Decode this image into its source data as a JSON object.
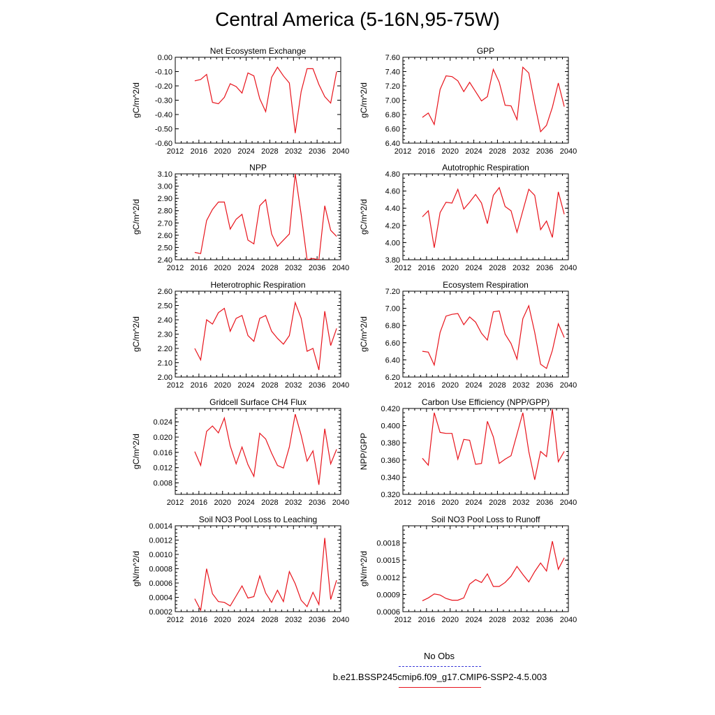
{
  "title": "Central America (5-16N,95-75W)",
  "colors": {
    "model": "#e8141c",
    "obs": "#3a3ad8",
    "axis": "#000000"
  },
  "legend": {
    "obs_label": "No Obs",
    "model_label": "b.e21.BSSP245cmip6.f09_g17.CMIP6-SSP2-4.5.003"
  },
  "chart_data": [
    {
      "type": "line",
      "title": "Net Ecosystem Exchange",
      "xlabel": "",
      "ylabel": "gC/m^2/d",
      "xlim": [
        2012,
        2040
      ],
      "ylim": [
        -0.6,
        0.0
      ],
      "xticks": [
        2012,
        2016,
        2020,
        2024,
        2028,
        2032,
        2036,
        2040
      ],
      "yticks": [
        "0.00",
        "-0.10",
        "-0.20",
        "-0.30",
        "-0.40",
        "-0.50",
        "-0.60"
      ],
      "x": [
        2015.3,
        2016.3,
        2017.3,
        2018.3,
        2019.3,
        2020.3,
        2021.3,
        2022.3,
        2023.3,
        2024.3,
        2025.3,
        2026.3,
        2027.3,
        2028.3,
        2029.3,
        2030.3,
        2031.3,
        2032.3,
        2033.3,
        2034.3,
        2035.3,
        2036.3,
        2037.3,
        2038.3,
        2039.3
      ],
      "series": [
        {
          "name": "b.e21.BSSP245cmip6.f09_g17.CMIP6-SSP2-4.5.003",
          "values": [
            -0.165,
            -0.155,
            -0.12,
            -0.315,
            -0.325,
            -0.28,
            -0.185,
            -0.205,
            -0.25,
            -0.11,
            -0.13,
            -0.29,
            -0.38,
            -0.14,
            -0.07,
            -0.13,
            -0.18,
            -0.53,
            -0.24,
            -0.08,
            -0.08,
            -0.19,
            -0.275,
            -0.32,
            -0.1
          ]
        }
      ]
    },
    {
      "type": "line",
      "title": "GPP",
      "xlabel": "",
      "ylabel": "gC/m^2/d",
      "xlim": [
        2012,
        2040
      ],
      "ylim": [
        6.4,
        7.6
      ],
      "xticks": [
        2012,
        2016,
        2020,
        2024,
        2028,
        2032,
        2036,
        2040
      ],
      "yticks": [
        "6.40",
        "6.60",
        "6.80",
        "7.00",
        "7.20",
        "7.40",
        "7.60"
      ],
      "x": [
        2015.3,
        2016.3,
        2017.3,
        2018.3,
        2019.3,
        2020.3,
        2021.3,
        2022.3,
        2023.3,
        2024.3,
        2025.3,
        2026.3,
        2027.3,
        2028.3,
        2029.3,
        2030.3,
        2031.3,
        2032.3,
        2033.3,
        2034.3,
        2035.3,
        2036.3,
        2037.3,
        2038.3,
        2039.3
      ],
      "series": [
        {
          "name": "b.e21.BSSP245cmip6.f09_g17.CMIP6-SSP2-4.5.003",
          "values": [
            6.76,
            6.82,
            6.66,
            7.15,
            7.34,
            7.33,
            7.27,
            7.12,
            7.25,
            7.12,
            6.99,
            7.05,
            7.43,
            7.25,
            6.93,
            6.92,
            6.73,
            7.46,
            7.38,
            6.95,
            6.56,
            6.65,
            6.9,
            7.24,
            6.91
          ]
        }
      ]
    },
    {
      "type": "line",
      "title": "NPP",
      "xlabel": "",
      "ylabel": "gC/m^2/d",
      "xlim": [
        2012,
        2040
      ],
      "ylim": [
        2.4,
        3.1
      ],
      "xticks": [
        2012,
        2016,
        2020,
        2024,
        2028,
        2032,
        2036,
        2040
      ],
      "yticks": [
        "2.40",
        "2.50",
        "2.60",
        "2.70",
        "2.80",
        "2.90",
        "3.00",
        "3.10"
      ],
      "x": [
        2015.3,
        2016.3,
        2017.3,
        2018.3,
        2019.3,
        2020.3,
        2021.3,
        2022.3,
        2023.3,
        2024.3,
        2025.3,
        2026.3,
        2027.3,
        2028.3,
        2029.3,
        2030.3,
        2031.3,
        2032.3,
        2033.3,
        2034.3,
        2035.3,
        2036.3,
        2037.3,
        2038.3,
        2039.3
      ],
      "series": [
        {
          "name": "b.e21.BSSP245cmip6.f09_g17.CMIP6-SSP2-4.5.003",
          "values": [
            2.46,
            2.45,
            2.72,
            2.81,
            2.87,
            2.87,
            2.65,
            2.73,
            2.77,
            2.56,
            2.53,
            2.84,
            2.89,
            2.61,
            2.51,
            2.56,
            2.61,
            3.1,
            2.77,
            2.4,
            2.41,
            2.4,
            2.84,
            2.64,
            2.59
          ]
        }
      ]
    },
    {
      "type": "line",
      "title": "Autotrophic Respiration",
      "xlabel": "",
      "ylabel": "gC/m^2/d",
      "xlim": [
        2012,
        2040
      ],
      "ylim": [
        3.8,
        4.8
      ],
      "xticks": [
        2012,
        2016,
        2020,
        2024,
        2028,
        2032,
        2036,
        2040
      ],
      "yticks": [
        "3.80",
        "4.00",
        "4.20",
        "4.40",
        "4.60",
        "4.80"
      ],
      "x": [
        2015.3,
        2016.3,
        2017.3,
        2018.3,
        2019.3,
        2020.3,
        2021.3,
        2022.3,
        2023.3,
        2024.3,
        2025.3,
        2026.3,
        2027.3,
        2028.3,
        2029.3,
        2030.3,
        2031.3,
        2032.3,
        2033.3,
        2034.3,
        2035.3,
        2036.3,
        2037.3,
        2038.3,
        2039.3
      ],
      "series": [
        {
          "name": "b.e21.BSSP245cmip6.f09_g17.CMIP6-SSP2-4.5.003",
          "values": [
            4.3,
            4.37,
            3.94,
            4.35,
            4.47,
            4.46,
            4.62,
            4.39,
            4.47,
            4.56,
            4.46,
            4.22,
            4.55,
            4.64,
            4.42,
            4.37,
            4.12,
            4.37,
            4.62,
            4.55,
            4.15,
            4.25,
            4.06,
            4.59,
            4.33
          ]
        }
      ]
    },
    {
      "type": "line",
      "title": "Heterotrophic Respiration",
      "xlabel": "",
      "ylabel": "gC/m^2/d",
      "xlim": [
        2012,
        2040
      ],
      "ylim": [
        2.0,
        2.6
      ],
      "xticks": [
        2012,
        2016,
        2020,
        2024,
        2028,
        2032,
        2036,
        2040
      ],
      "yticks": [
        "2.00",
        "2.10",
        "2.20",
        "2.30",
        "2.40",
        "2.50",
        "2.60"
      ],
      "x": [
        2015.3,
        2016.3,
        2017.3,
        2018.3,
        2019.3,
        2020.3,
        2021.3,
        2022.3,
        2023.3,
        2024.3,
        2025.3,
        2026.3,
        2027.3,
        2028.3,
        2029.3,
        2030.3,
        2031.3,
        2032.3,
        2033.3,
        2034.3,
        2035.3,
        2036.3,
        2037.3,
        2038.3,
        2039.3
      ],
      "series": [
        {
          "name": "b.e21.BSSP245cmip6.f09_g17.CMIP6-SSP2-4.5.003",
          "values": [
            2.2,
            2.12,
            2.4,
            2.37,
            2.45,
            2.48,
            2.32,
            2.41,
            2.43,
            2.29,
            2.25,
            2.41,
            2.43,
            2.32,
            2.27,
            2.23,
            2.29,
            2.52,
            2.41,
            2.18,
            2.2,
            2.05,
            2.46,
            2.22,
            2.34
          ]
        }
      ]
    },
    {
      "type": "line",
      "title": "Ecosystem Respiration",
      "xlabel": "",
      "ylabel": "gC/m^2/d",
      "xlim": [
        2012,
        2040
      ],
      "ylim": [
        6.2,
        7.2
      ],
      "xticks": [
        2012,
        2016,
        2020,
        2024,
        2028,
        2032,
        2036,
        2040
      ],
      "yticks": [
        "6.20",
        "6.40",
        "6.60",
        "6.80",
        "7.00",
        "7.20"
      ],
      "x": [
        2015.3,
        2016.3,
        2017.3,
        2018.3,
        2019.3,
        2020.3,
        2021.3,
        2022.3,
        2023.3,
        2024.3,
        2025.3,
        2026.3,
        2027.3,
        2028.3,
        2029.3,
        2030.3,
        2031.3,
        2032.3,
        2033.3,
        2034.3,
        2035.3,
        2036.3,
        2037.3,
        2038.3,
        2039.3
      ],
      "series": [
        {
          "name": "b.e21.BSSP245cmip6.f09_g17.CMIP6-SSP2-4.5.003",
          "values": [
            6.5,
            6.49,
            6.34,
            6.72,
            6.91,
            6.93,
            6.94,
            6.81,
            6.9,
            6.84,
            6.71,
            6.63,
            6.96,
            6.97,
            6.7,
            6.59,
            6.41,
            6.88,
            7.03,
            6.72,
            6.35,
            6.3,
            6.51,
            6.82,
            6.66
          ]
        }
      ]
    },
    {
      "type": "line",
      "title": "Gridcell Surface CH4 Flux",
      "xlabel": "",
      "ylabel": "gC/m^2/d",
      "xlim": [
        2012,
        2040
      ],
      "ylim": [
        0.005,
        0.0275
      ],
      "xticks": [
        2012,
        2016,
        2020,
        2024,
        2028,
        2032,
        2036,
        2040
      ],
      "yticks": [
        "0.008",
        "0.012",
        "0.016",
        "0.020",
        "0.024"
      ],
      "x": [
        2015.3,
        2016.3,
        2017.3,
        2018.3,
        2019.3,
        2020.3,
        2021.3,
        2022.3,
        2023.3,
        2024.3,
        2025.3,
        2026.3,
        2027.3,
        2028.3,
        2029.3,
        2030.3,
        2031.3,
        2032.3,
        2033.3,
        2034.3,
        2035.3,
        2036.3,
        2037.3,
        2038.3,
        2039.3
      ],
      "series": [
        {
          "name": "b.e21.BSSP245cmip6.f09_g17.CMIP6-SSP2-4.5.003",
          "values": [
            0.0162,
            0.0126,
            0.0215,
            0.0229,
            0.0211,
            0.025,
            0.0177,
            0.013,
            0.0174,
            0.0128,
            0.0097,
            0.021,
            0.0195,
            0.0158,
            0.0126,
            0.0119,
            0.0174,
            0.026,
            0.0205,
            0.0137,
            0.0164,
            0.0075,
            0.0222,
            0.013,
            0.0168
          ]
        }
      ]
    },
    {
      "type": "line",
      "title": "Carbon Use Efficiency (NPP/GPP)",
      "xlabel": "",
      "ylabel": "NPP/GPP",
      "xlim": [
        2012,
        2040
      ],
      "ylim": [
        0.32,
        0.42
      ],
      "xticks": [
        2012,
        2016,
        2020,
        2024,
        2028,
        2032,
        2036,
        2040
      ],
      "yticks": [
        "0.320",
        "0.340",
        "0.360",
        "0.380",
        "0.400",
        "0.420"
      ],
      "x": [
        2015.3,
        2016.3,
        2017.3,
        2018.3,
        2019.3,
        2020.3,
        2021.3,
        2022.3,
        2023.3,
        2024.3,
        2025.3,
        2026.3,
        2027.3,
        2028.3,
        2029.3,
        2030.3,
        2031.3,
        2032.3,
        2033.3,
        2034.3,
        2035.3,
        2036.3,
        2037.3,
        2038.3,
        2039.3
      ],
      "series": [
        {
          "name": "b.e21.BSSP245cmip6.f09_g17.CMIP6-SSP2-4.5.003",
          "values": [
            0.362,
            0.354,
            0.415,
            0.392,
            0.391,
            0.391,
            0.361,
            0.384,
            0.383,
            0.355,
            0.356,
            0.405,
            0.387,
            0.356,
            0.361,
            0.365,
            0.39,
            0.415,
            0.37,
            0.337,
            0.37,
            0.364,
            0.419,
            0.358,
            0.37
          ]
        }
      ]
    },
    {
      "type": "line",
      "title": "Soil NO3 Pool Loss to Leaching",
      "xlabel": "",
      "ylabel": "gN/m^2/d",
      "xlim": [
        2012,
        2040
      ],
      "ylim": [
        0.0002,
        0.0014
      ],
      "xticks": [
        2012,
        2016,
        2020,
        2024,
        2028,
        2032,
        2036,
        2040
      ],
      "yticks": [
        "0.0002",
        "0.0004",
        "0.0006",
        "0.0008",
        "0.0010",
        "0.0012",
        "0.0014"
      ],
      "x": [
        2015.3,
        2016.3,
        2017.3,
        2018.3,
        2019.3,
        2020.3,
        2021.3,
        2022.3,
        2023.3,
        2024.3,
        2025.3,
        2026.3,
        2027.3,
        2028.3,
        2029.3,
        2030.3,
        2031.3,
        2032.3,
        2033.3,
        2034.3,
        2035.3,
        2036.3,
        2037.3,
        2038.3,
        2039.3
      ],
      "series": [
        {
          "name": "b.e21.BSSP245cmip6.f09_g17.CMIP6-SSP2-4.5.003",
          "values": [
            0.00038,
            0.00022,
            0.0008,
            0.00045,
            0.00034,
            0.00033,
            0.00028,
            0.00042,
            0.00056,
            0.00039,
            0.00041,
            0.0007,
            0.00046,
            0.00033,
            0.0005,
            0.00034,
            0.00076,
            0.00059,
            0.00036,
            0.00027,
            0.00047,
            0.0003,
            0.00123,
            0.00037,
            0.00064
          ]
        }
      ]
    },
    {
      "type": "line",
      "title": "Soil NO3 Pool Loss to Runoff",
      "xlabel": "",
      "ylabel": "gN/m^2/d",
      "xlim": [
        2012,
        2040
      ],
      "ylim": [
        0.0006,
        0.0021
      ],
      "xticks": [
        2012,
        2016,
        2020,
        2024,
        2028,
        2032,
        2036,
        2040
      ],
      "yticks": [
        "0.0006",
        "0.0009",
        "0.0012",
        "0.0015",
        "0.0018"
      ],
      "x": [
        2015.3,
        2016.3,
        2017.3,
        2018.3,
        2019.3,
        2020.3,
        2021.3,
        2022.3,
        2023.3,
        2024.3,
        2025.3,
        2026.3,
        2027.3,
        2028.3,
        2029.3,
        2030.3,
        2031.3,
        2032.3,
        2033.3,
        2034.3,
        2035.3,
        2036.3,
        2037.3,
        2038.3,
        2039.3
      ],
      "series": [
        {
          "name": "b.e21.BSSP245cmip6.f09_g17.CMIP6-SSP2-4.5.003",
          "values": [
            0.00079,
            0.00084,
            0.00091,
            0.00089,
            0.00083,
            0.0008,
            0.0008,
            0.00084,
            0.00108,
            0.00116,
            0.00111,
            0.00126,
            0.00104,
            0.00104,
            0.00111,
            0.00122,
            0.00139,
            0.00125,
            0.00112,
            0.0013,
            0.00145,
            0.00131,
            0.00183,
            0.00134,
            0.00154
          ]
        }
      ]
    }
  ]
}
